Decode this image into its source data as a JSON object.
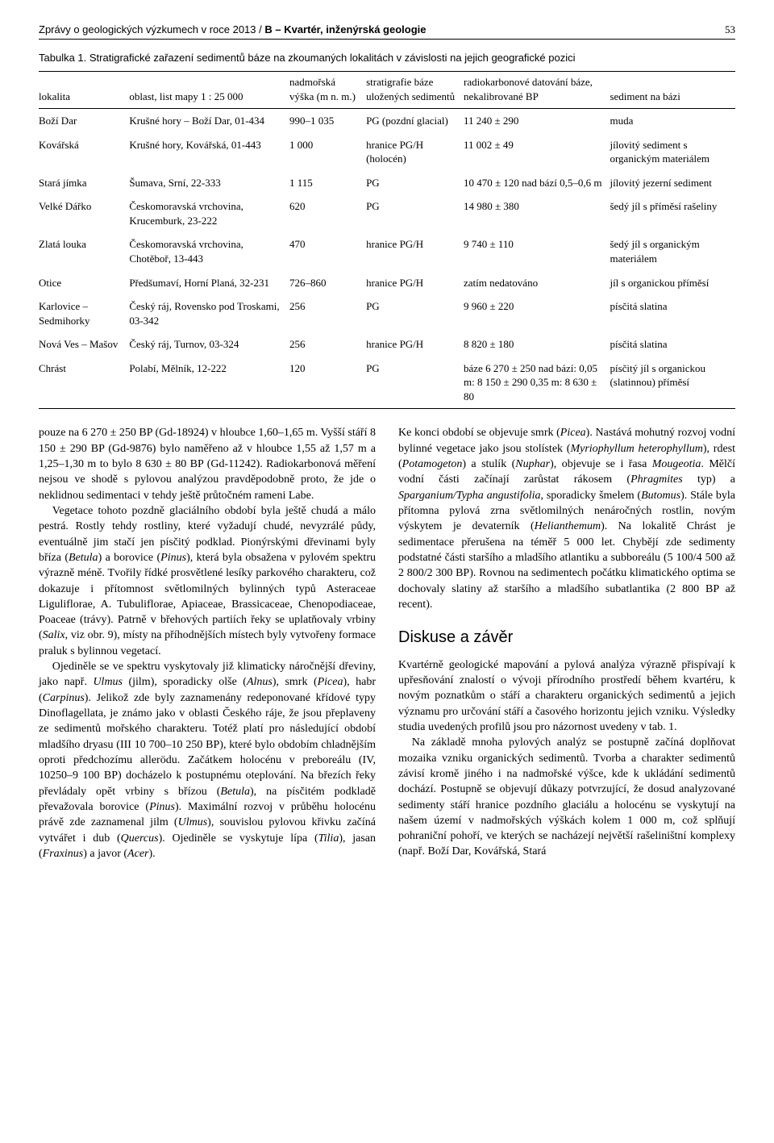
{
  "header": {
    "journal_left": "Zprávy o geologických výzkumech v roce 2013 / ",
    "section_bold": "B – Kvartér, inženýrská geologie",
    "page_number": "53"
  },
  "table": {
    "caption": "Tabulka 1. Stratigrafické zařazení sedimentů báze na zkoumaných lokalitách v závislosti na jejich geografické pozici",
    "columns": {
      "c0": "lokalita",
      "c1": "oblast, list mapy 1 : 25 000",
      "c2": "nadmořská výška (m n. m.)",
      "c3": "stratigrafie báze uložených sedimentů",
      "c4": "radiokarbonové datování báze, nekalibrované BP",
      "c5": "sediment na bázi"
    },
    "rows": [
      {
        "c0": "Boží Dar",
        "c1": "Krušné hory – Boží Dar, 01-434",
        "c2": "990–1 035",
        "c3": "PG (pozdní glacial)",
        "c4": "11 240 ± 290",
        "c5": "muda"
      },
      {
        "c0": "Kovářská",
        "c1": "Krušné hory, Kovářská, 01-443",
        "c2": "1 000",
        "c3": "hranice PG/H (holocén)",
        "c4": "11 002 ± 49",
        "c5": "jílovitý sediment s organickým materiálem"
      },
      {
        "c0": "Stará jímka",
        "c1": "Šumava, Srní, 22-333",
        "c2": "1 115",
        "c3": "PG",
        "c4": "10 470 ± 120 nad bází 0,5–0,6 m",
        "c5": "jílovitý jezerní sediment"
      },
      {
        "c0": "Velké Dářko",
        "c1": "Českomoravská vrchovina, Krucemburk, 23-222",
        "c2": "620",
        "c3": "PG",
        "c4": "14 980 ± 380",
        "c5": "šedý jíl s příměsí rašeliny"
      },
      {
        "c0": "Zlatá louka",
        "c1": "Českomoravská vrchovina, Chotěboř, 13-443",
        "c2": "470",
        "c3": "hranice PG/H",
        "c4": "9 740 ± 110",
        "c5": "šedý jíl s organickým materiálem"
      },
      {
        "c0": "Otice",
        "c1": "Předšumaví, Horní Planá, 32-231",
        "c2": "726–860",
        "c3": "hranice PG/H",
        "c4": "zatím nedatováno",
        "c5": "jíl s organickou příměsí"
      },
      {
        "c0": "Karlovice – Sedmihorky",
        "c1": "Český ráj, Rovensko pod Troskami, 03-342",
        "c2": "256",
        "c3": "PG",
        "c4": "9 960 ± 220",
        "c5": "písčitá slatina"
      },
      {
        "c0": "Nová Ves – Mašov",
        "c1": "Český ráj, Turnov, 03-324",
        "c2": "256",
        "c3": "hranice PG/H",
        "c4": "8 820 ± 180",
        "c5": "písčitá slatina"
      },
      {
        "c0": "Chrást",
        "c1": "Polabí, Mělník, 12-222",
        "c2": "120",
        "c3": "PG",
        "c4": "báze 6 270 ± 250 nad bází: 0,05 m: 8 150 ± 290 0,35 m: 8 630 ± 80",
        "c5": "písčitý jíl s organickou (slatinnou) příměsí"
      }
    ]
  },
  "body": {
    "p1a": "pouze na 6 270 ± 250 BP (Gd-18924) v hloubce 1,60–1,65 m. Vyšší stáří 8 150 ± 290 BP (Gd-9876) bylo naměřeno až v hloubce 1,55 až 1,57 m a 1,25–1,30 m to bylo 8 630 ± 80 BP (Gd-11242). Radiokarbonová měření nejsou ve shodě s pylovou analýzou pravděpodobně proto, že jde o neklidnou sedimentaci v tehdy ještě průtočném rameni Labe.",
    "p1b_pre": "Vegetace tohoto pozdně glaciálního období byla ještě chudá a málo pestrá. Rostly tehdy rostliny, které vyžadují chudé, nevyzrálé půdy, eventuálně jim stačí jen písčitý podklad. Pionýrskými dřevinami byly bříza (",
    "betula": "Betula",
    "p1b_mid1": ") a borovice (",
    "pinus": "Pinus",
    "p1b_mid2": "), která byla obsažena v pylovém spektru výrazně méně. Tvořily řídké prosvětlené lesíky parkového charakteru, což dokazuje i přítomnost světlomilných bylinných typů Asteraceae Liguliflorae, A. Tubuliflorae, Apiaceae, Brassicaceae, Chenopodiaceae, Poaceae (trávy). Patrně v břehových partiích řeky se uplatňovaly vrbiny (",
    "salix": "Salix",
    "p1b_end": ", viz obr. 9), místy na příhodnějších místech byly vytvořeny formace praluk s bylinnou vegetací.",
    "p2_pre": "Ojediněle se ve spektru vyskytovaly již klimaticky náročnější dřeviny, jako např. ",
    "ulmus": "Ulmus",
    "p2_a": " (jilm), sporadicky olše (",
    "alnus": "Alnus",
    "p2_b": "), smrk (",
    "picea": "Picea",
    "p2_c": "), habr (",
    "carpinus": "Carpinus",
    "p2_d": "). Jelikož zde byly zaznamenány redeponované křídové typy Dinoflagellata, je známo jako v oblasti Českého ráje, že jsou přeplaveny ze sedimentů mořského charakteru. Totéž platí pro následující období mladšího dryasu (III 10 700–10 250 BP), které bylo obdobím chladnějším oproti předchozímu allerödu. Začátkem holocénu v preboreálu (IV, 10250–9 100 BP) docházelo k postupnému oteplování. Na březích řeky převládaly opět vrbiny s břízou (",
    "betula2": "Betula",
    "p2_e": "), na písčitém podkladě převažovala borovice (",
    "pinus2": "Pinus",
    "p2_f": "). Maximální rozvoj v průběhu holocénu právě zde zaznamenal jilm (",
    "ulmus2": "Ulmus",
    "p2_g": "), souvislou pylovou křivku začíná vytvářet i dub (",
    "quercus": "Quercus",
    "p2_h": "). Ojediněle se vyskytuje lípa (",
    "tilia": "Tilia",
    "p2_i": "), jasan (",
    "fraxinus": "Fraxinus",
    "p2_j": ") a javor (",
    "acer": "Acer",
    "p2_k": ").",
    "p3_pre": "Ke konci období se objevuje smrk (",
    "picea2": "Picea",
    "p3_a": "). Nastává mohutný rozvoj vodní bylinné vegetace jako jsou stolístek (",
    "myrio": "Myriophyllum heterophyllum",
    "p3_b": "), rdest (",
    "potam": "Potamogeton",
    "p3_c": ") a stulík (",
    "nuphar": "Nuphar",
    "p3_d": "), objevuje se i řasa ",
    "mougeotia": "Mougeotia",
    "p3_e": ". Mělčí vodní části začínají zarůstat rákosem (",
    "phrag": "Phragmites",
    "p3_f": " typ) a ",
    "spartyp": "Sparganium/Typha angustifolia",
    "p3_g": ", sporadicky šmelem (",
    "butomus": "Butomus",
    "p3_h": "). Stále byla přítomna pylová zrna světlomilných nenáročných rostlin, novým výskytem je devaterník (",
    "helian": "Helianthemum",
    "p3_i": "). Na lokalitě Chrást je sedimentace přerušena na téměř 5 000 let. Chybějí zde sedimenty podstatné části staršího a mladšího atlantiku a subboreálu (5 100/4 500 až 2 800/2 300 BP). Rovnou na sedimentech počátku klimatického optima se dochovaly slatiny až staršího a mladšího subatlantika (2 800 BP až recent).",
    "discussion_h": "Diskuse a závěr",
    "p4": "Kvartérně geologické mapování a pylová analýza výrazně přispívají k upřesňování znalostí o vývoji přírodního prostředí během kvartéru, k novým poznatkům o stáří a charakteru organických sedimentů a jejich významu pro určování stáří a časového horizontu jejich vzniku. Výsledky studia uvedených profilů jsou pro názornost uvedeny v tab. 1.",
    "p5": "Na základě mnoha pylových analýz se postupně začíná doplňovat mozaika vzniku organických sedimentů. Tvorba a charakter sedimentů závisí kromě jiného i na nadmořské výšce, kde k ukládání sedimentů dochází. Postupně se objevují důkazy potvrzující, že dosud analyzované sedimenty stáří hranice pozdního glaciálu a holocénu se vyskytují na našem území v nadmořských výškách kolem 1 000 m, což splňují pohraniční pohoří, ve kterých se nacházejí největší rašeliništní komplexy (např. Boží Dar, Kovářská, Stará"
  }
}
